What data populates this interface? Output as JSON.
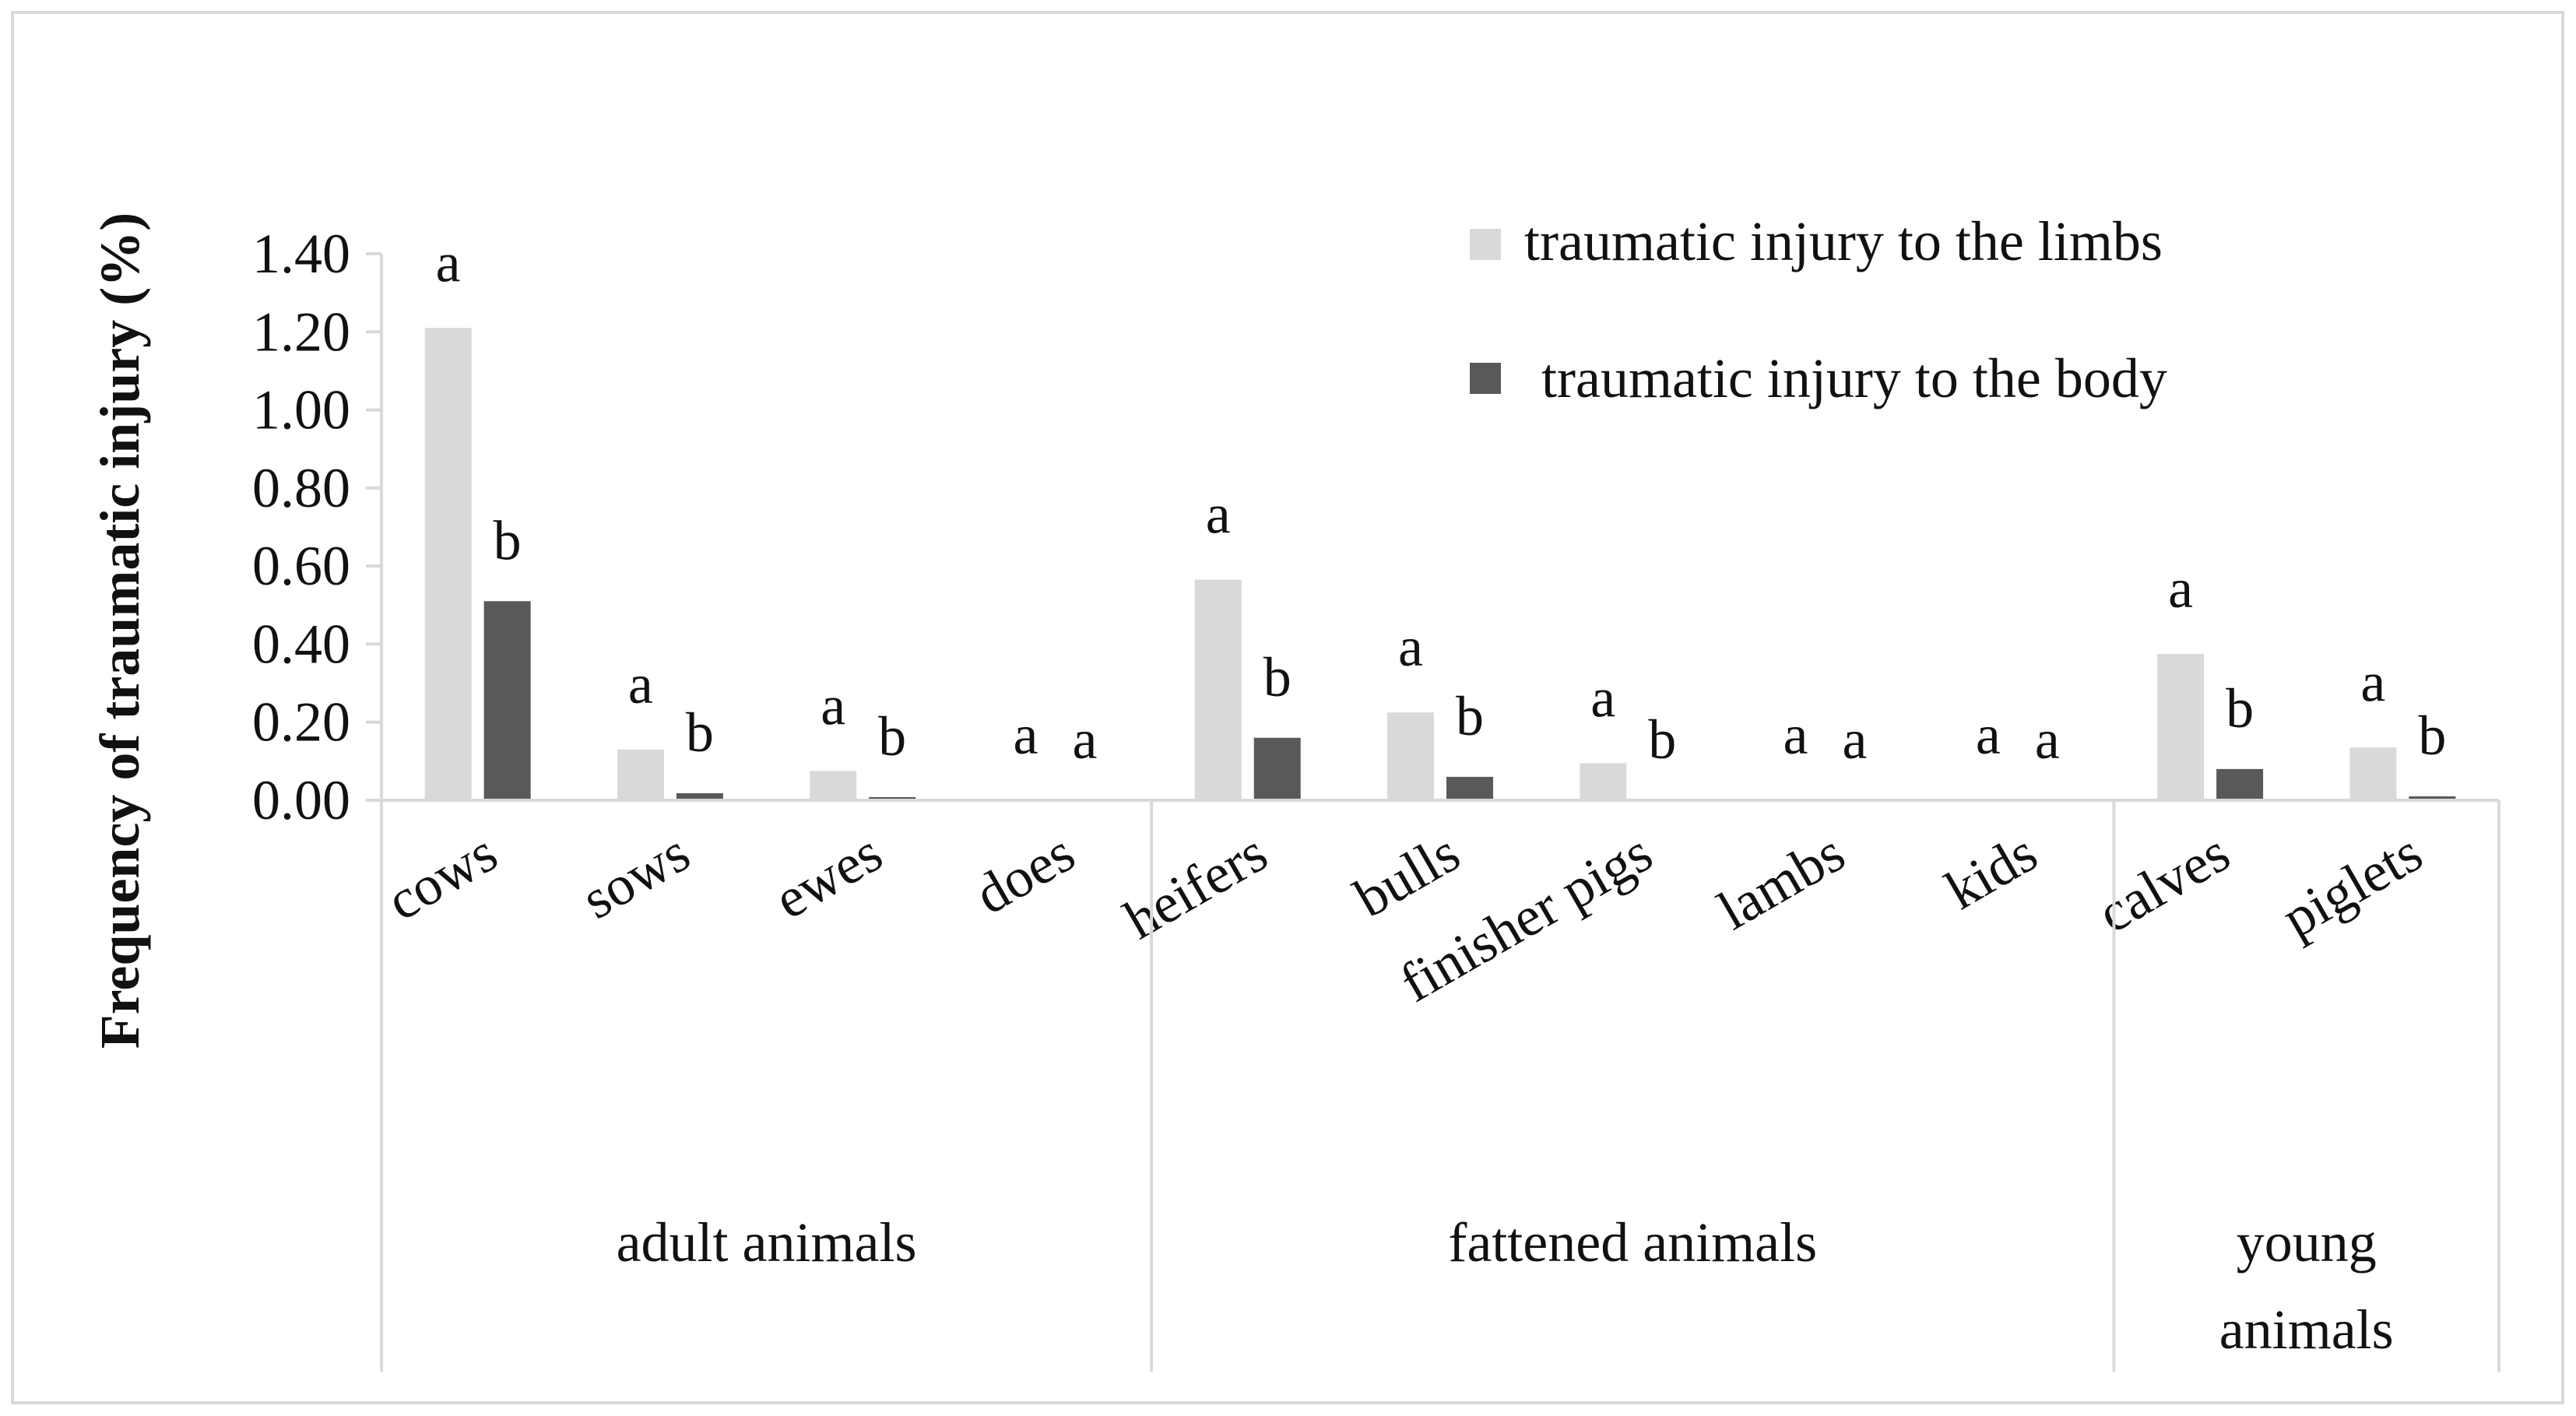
{
  "chart_data": {
    "type": "bar",
    "ylabel": "Frequency of traumatic injury (%)",
    "ylim": [
      0,
      1.4
    ],
    "y_ticks": [
      "0.00",
      "0.20",
      "0.40",
      "0.60",
      "0.80",
      "1.00",
      "1.20",
      "1.40"
    ],
    "categories": [
      "cows",
      "sows",
      "ewes",
      "does",
      "heifers",
      "bulls",
      "finisher pigs",
      "lambs",
      "kids",
      "calves",
      "piglets"
    ],
    "groups": [
      {
        "label": "adult animals",
        "categories": [
          "cows",
          "sows",
          "ewes",
          "does"
        ]
      },
      {
        "label": "fattened animals",
        "categories": [
          "heifers",
          "bulls",
          "finisher pigs",
          "lambs",
          "kids"
        ]
      },
      {
        "label": "young animals",
        "categories": [
          "calves",
          "piglets"
        ]
      }
    ],
    "series": [
      {
        "name": "traumatic injury to the limbs",
        "color": "#d9d9d9",
        "values": [
          1.21,
          0.13,
          0.075,
          0.0,
          0.565,
          0.225,
          0.095,
          0.0,
          0.0,
          0.375,
          0.135
        ],
        "annotations": [
          "a",
          "a",
          "a",
          "a",
          "a",
          "a",
          "a",
          "a",
          "a",
          "a",
          "a"
        ]
      },
      {
        "name": "traumatic injury to the body",
        "color": "#595959",
        "values": [
          0.51,
          0.018,
          0.008,
          0.0,
          0.16,
          0.06,
          0.0,
          0.0,
          0.0,
          0.08,
          0.01
        ],
        "annotations": [
          "b",
          "b",
          "b",
          "a",
          "b",
          "b",
          "b",
          "a",
          "a",
          "b",
          "b"
        ]
      }
    ],
    "legend_position": "top-right",
    "grid": false
  }
}
